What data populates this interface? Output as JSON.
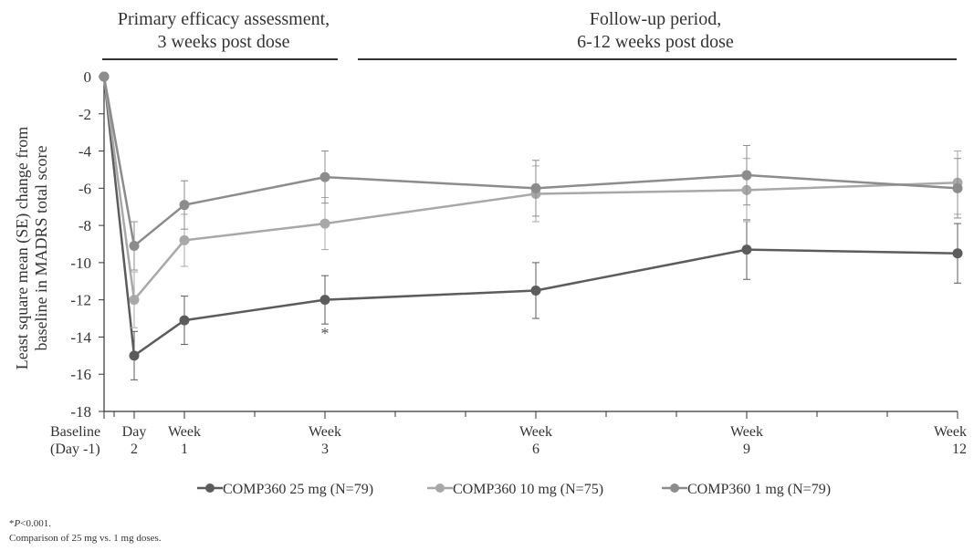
{
  "header": {
    "primary_line1": "Primary efficacy assessment,",
    "primary_line2": "3 weeks post dose",
    "followup_line1": "Follow-up period,",
    "followup_line2": "6-12 weeks post dose"
  },
  "footnotes": {
    "significance_symbol": "*",
    "significance_italic": "P",
    "significance_rest": "<0.001.",
    "comparison": "Comparison of 25 mg vs. 1 mg doses."
  },
  "colors": {
    "dose_25mg": "#5c5c5c",
    "dose_10mg": "#a8a8a8",
    "dose_1mg": "#8c8c8c",
    "axis": "#333333"
  },
  "chart_data": {
    "type": "line",
    "ylabel_line1": "Least square mean (SE) change from",
    "ylabel_line2": "baseline in MADRS total score",
    "ylim": [
      -18,
      0
    ],
    "yticks": [
      0,
      -2,
      -4,
      -6,
      -8,
      -10,
      -12,
      -14,
      -16,
      -18
    ],
    "xlim": [
      -1,
      84
    ],
    "x_days": [
      -1,
      2,
      7,
      21,
      42,
      63,
      84
    ],
    "x_ticks": [
      {
        "day": -1,
        "line1": "Baseline",
        "line2": "(Day -1)"
      },
      {
        "day": 2,
        "line1": "Day",
        "line2": "2"
      },
      {
        "day": 7,
        "line1": "Week",
        "line2": "1"
      },
      {
        "day": 21,
        "line1": "Week",
        "line2": "3"
      },
      {
        "day": 42,
        "line1": "Week",
        "line2": "6"
      },
      {
        "day": 63,
        "line1": "Week",
        "line2": "9"
      },
      {
        "day": 84,
        "line1": "Week",
        "line2": "12"
      }
    ],
    "series": [
      {
        "name": "COMP360 25 mg (N=79)",
        "color_key": "dose_25mg",
        "values": [
          0,
          -15.0,
          -13.1,
          -12.0,
          -11.5,
          -9.3,
          -9.5
        ],
        "se": [
          0,
          1.3,
          1.3,
          1.3,
          1.5,
          1.6,
          1.6
        ]
      },
      {
        "name": "COMP360 10 mg (N=75)",
        "color_key": "dose_10mg",
        "values": [
          0,
          -12.0,
          -8.8,
          -7.9,
          -6.3,
          -6.1,
          -5.7
        ],
        "se": [
          0,
          1.5,
          1.4,
          1.4,
          1.5,
          1.7,
          1.7
        ]
      },
      {
        "name": "COMP360 1 mg (N=79)",
        "color_key": "dose_1mg",
        "values": [
          0,
          -9.1,
          -6.9,
          -5.4,
          -6.0,
          -5.3,
          -6.0
        ],
        "se": [
          0,
          1.3,
          1.3,
          1.4,
          1.5,
          1.6,
          1.6
        ]
      }
    ],
    "annotations": [
      {
        "day": 21,
        "text": "*"
      }
    ],
    "legend_position": "bottom",
    "grid": false
  }
}
